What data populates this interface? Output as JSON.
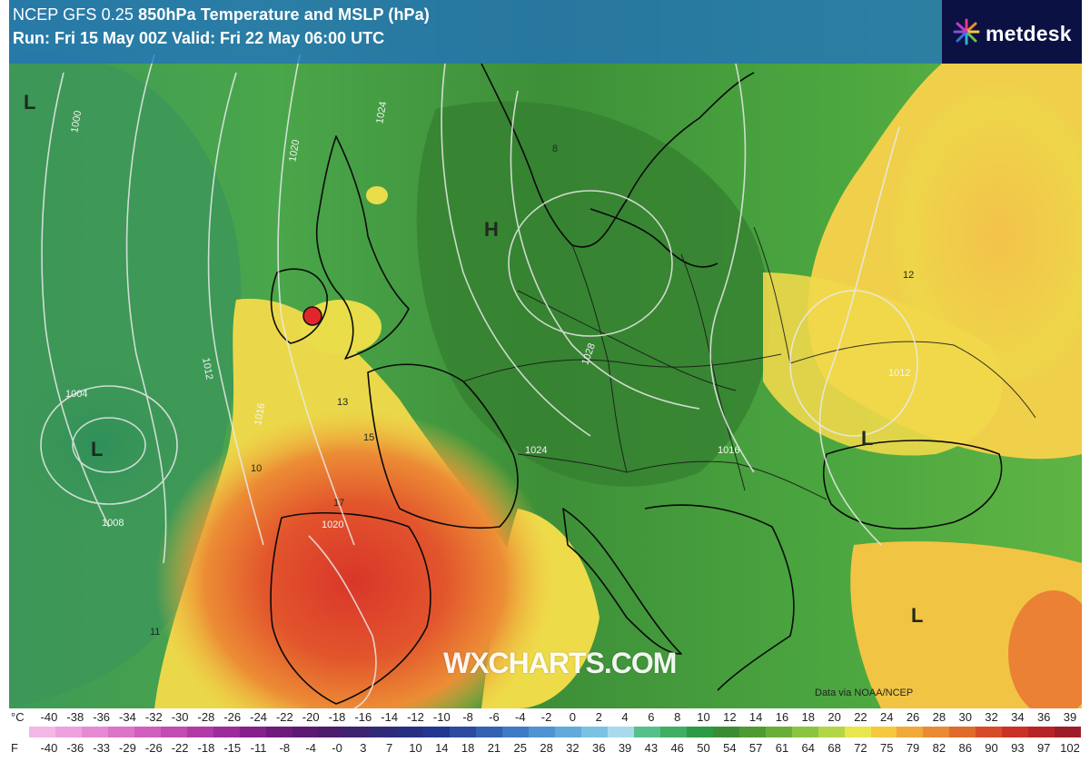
{
  "header": {
    "title_prefix": "NCEP GFS 0.25 ",
    "title_bold": "850hPa Temperature and MSLP (hPa)",
    "subtitle": "Run: Fri 15 May 00Z Valid: Fri 22 May 06:00 UTC"
  },
  "logo": {
    "text": "metdesk",
    "icon": "metdesk-starburst-icon"
  },
  "watermark": "WXCHARTS.COM",
  "credit": "Data via NOAA/NCEP",
  "pressure_centres": [
    "L",
    "H",
    "L",
    "L",
    "L"
  ],
  "isobar_labels": [
    "1000",
    "1004",
    "1008",
    "1012",
    "1016",
    "1020",
    "1024",
    "1028",
    "1016",
    "1012",
    "1020",
    "1024"
  ],
  "temperature_labels": [
    "8",
    "10",
    "11",
    "12",
    "13",
    "15",
    "17"
  ],
  "legend": {
    "celsius_unit": "°C",
    "fahrenheit_unit": "F",
    "celsius": [
      "-40",
      "-38",
      "-36",
      "-34",
      "-32",
      "-30",
      "-28",
      "-26",
      "-24",
      "-22",
      "-20",
      "-18",
      "-16",
      "-14",
      "-12",
      "-10",
      "-8",
      "-6",
      "-4",
      "-2",
      "0",
      "2",
      "4",
      "6",
      "8",
      "10",
      "12",
      "14",
      "16",
      "18",
      "20",
      "22",
      "24",
      "26",
      "28",
      "30",
      "32",
      "34",
      "36",
      "39"
    ],
    "fahrenheit": [
      "-40",
      "-36",
      "-33",
      "-29",
      "-26",
      "-22",
      "-18",
      "-15",
      "-11",
      "-8",
      "-4",
      "-0",
      "3",
      "7",
      "10",
      "14",
      "18",
      "21",
      "25",
      "28",
      "32",
      "36",
      "39",
      "43",
      "46",
      "50",
      "54",
      "57",
      "61",
      "64",
      "68",
      "72",
      "75",
      "79",
      "82",
      "86",
      "90",
      "93",
      "97",
      "102"
    ],
    "colors": [
      "#f4b7e6",
      "#eea2dd",
      "#e68bd3",
      "#dc74c8",
      "#d05fbe",
      "#c24cb3",
      "#b23aa8",
      "#9c2c99",
      "#86208a",
      "#701a7c",
      "#5c1a72",
      "#4b1c6b",
      "#3d2470",
      "#302b78",
      "#262f83",
      "#22378f",
      "#2b4aa0",
      "#3561b2",
      "#3f7ac4",
      "#4f93d2",
      "#62aadc",
      "#7bc1e3",
      "#a7dbec",
      "#56c08a",
      "#3fae63",
      "#2e9a46",
      "#3b8d34",
      "#509a33",
      "#6aae3a",
      "#8bc440",
      "#b3d647",
      "#e9e64b",
      "#f5c840",
      "#f1a93a",
      "#ea8a33",
      "#e16a2d",
      "#d74b29",
      "#cc3126",
      "#b82426",
      "#9e1c27"
    ]
  }
}
